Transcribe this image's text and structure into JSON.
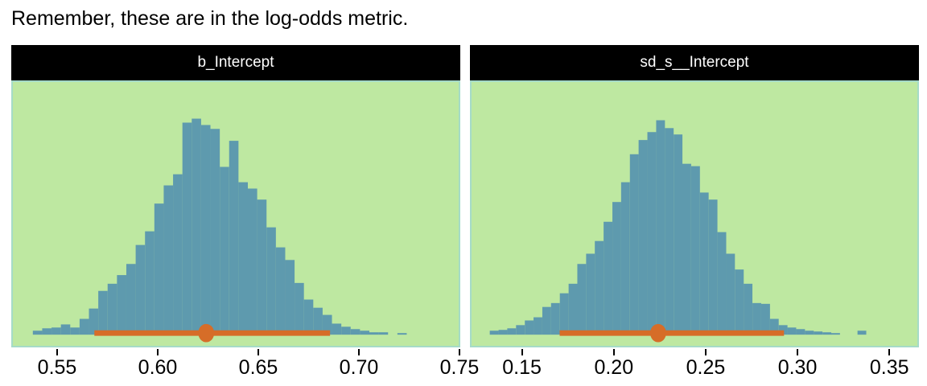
{
  "note": {
    "text": "Remember, these are in the log-odds metric."
  },
  "colors": {
    "bar": "#5e9aae",
    "panel_background": "#bee8a1",
    "panel_border": "#a5dbc8",
    "strip_background": "#000000",
    "strip_text": "#ffffff",
    "interval": "#d66d28",
    "text": "#000000"
  },
  "chart_data": [
    {
      "type": "bar",
      "subtype": "histogram-posterior",
      "panel_title": "b_Intercept",
      "x_tick_labels": [
        "0.55",
        "0.60",
        "0.65",
        "0.70",
        "0.75"
      ],
      "x_tick_values": [
        0.55,
        0.6,
        0.65,
        0.7,
        0.75
      ],
      "xlim": [
        0.5272,
        0.7504
      ],
      "bin_start": 0.5372,
      "bin_width": 0.00468,
      "bar_heights": [
        0.015,
        0.024,
        0.027,
        0.039,
        0.027,
        0.06,
        0.099,
        0.166,
        0.193,
        0.226,
        0.268,
        0.34,
        0.392,
        0.497,
        0.566,
        0.608,
        0.804,
        0.819,
        0.795,
        0.78,
        0.636,
        0.735,
        0.578,
        0.554,
        0.512,
        0.407,
        0.331,
        0.283,
        0.196,
        0.133,
        0.102,
        0.075,
        0.042,
        0.03,
        0.021,
        0.015,
        0.009,
        0.009,
        0,
        0.006
      ],
      "point_estimate": 0.624,
      "interval": [
        0.568,
        0.686
      ],
      "ylabel": "",
      "grid": false,
      "legend": "none"
    },
    {
      "type": "bar",
      "subtype": "histogram-posterior",
      "panel_title": "sd_s__Intercept",
      "x_tick_labels": [
        "0.15",
        "0.20",
        "0.25",
        "0.30",
        "0.35"
      ],
      "x_tick_values": [
        0.15,
        0.2,
        0.25,
        0.3,
        0.35
      ],
      "xlim": [
        0.1217,
        0.3661
      ],
      "bin_start": 0.1317,
      "bin_width": 0.0048,
      "bar_heights": [
        0.015,
        0.018,
        0.024,
        0.036,
        0.054,
        0.066,
        0.105,
        0.12,
        0.157,
        0.193,
        0.268,
        0.307,
        0.355,
        0.428,
        0.503,
        0.578,
        0.684,
        0.738,
        0.768,
        0.813,
        0.783,
        0.759,
        0.648,
        0.639,
        0.539,
        0.512,
        0.389,
        0.307,
        0.247,
        0.193,
        0.12,
        0.117,
        0.06,
        0.036,
        0.027,
        0.021,
        0.015,
        0.012,
        0.009,
        0.006,
        0,
        0,
        0.015
      ],
      "point_estimate": 0.224,
      "interval": [
        0.17,
        0.293
      ],
      "ylabel": "",
      "grid": false,
      "legend": "none"
    }
  ]
}
